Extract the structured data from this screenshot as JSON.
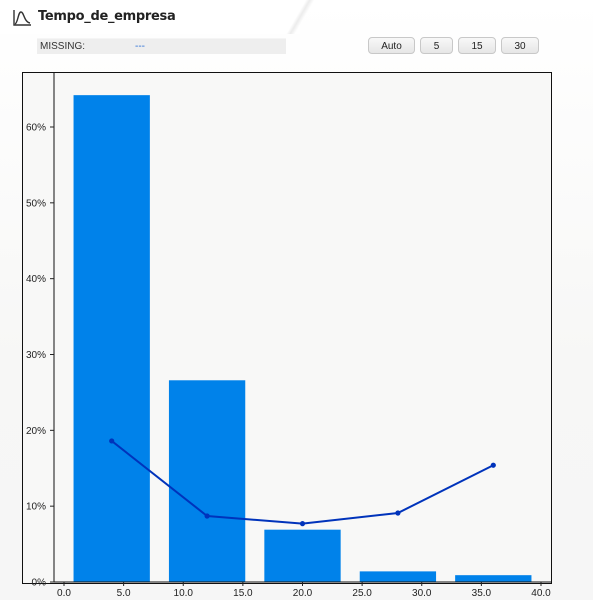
{
  "header": {
    "title": "Tempo_de_empresa",
    "icon": "histogram-icon"
  },
  "missing": {
    "label": "MISSING:",
    "value": "---"
  },
  "bin_buttons": [
    "Auto",
    "5",
    "15",
    "30"
  ],
  "colors": {
    "bar": "#0082ea",
    "line": "#0033bb",
    "frame": "#111111"
  },
  "chart_data": {
    "type": "bar",
    "xlim": [
      0,
      40
    ],
    "ylim": [
      0,
      65
    ],
    "x_ticks": [
      0,
      5,
      10,
      15,
      20,
      25,
      30,
      35,
      40
    ],
    "x_tick_labels": [
      "0.0",
      "5.0",
      "10.0",
      "15.0",
      "20.0",
      "25.0",
      "30.0",
      "35.0",
      "40.0"
    ],
    "y_ticks": [
      0,
      10,
      20,
      30,
      40,
      50,
      60
    ],
    "y_tick_labels": [
      "0%",
      "10%",
      "20%",
      "30%",
      "40%",
      "50%",
      "60%"
    ],
    "bars": [
      {
        "x0": 0.8,
        "x1": 7.2,
        "value": 64.2
      },
      {
        "x0": 8.8,
        "x1": 15.2,
        "value": 26.6
      },
      {
        "x0": 16.8,
        "x1": 23.2,
        "value": 6.9
      },
      {
        "x0": 24.8,
        "x1": 31.2,
        "value": 1.4
      },
      {
        "x0": 32.8,
        "x1": 39.2,
        "value": 0.9
      }
    ],
    "line": [
      {
        "x": 4.0,
        "y": 18.6
      },
      {
        "x": 12.0,
        "y": 8.7
      },
      {
        "x": 20.0,
        "y": 7.7
      },
      {
        "x": 28.0,
        "y": 9.1
      },
      {
        "x": 36.0,
        "y": 15.4
      }
    ],
    "grid": false,
    "legend": "none"
  }
}
